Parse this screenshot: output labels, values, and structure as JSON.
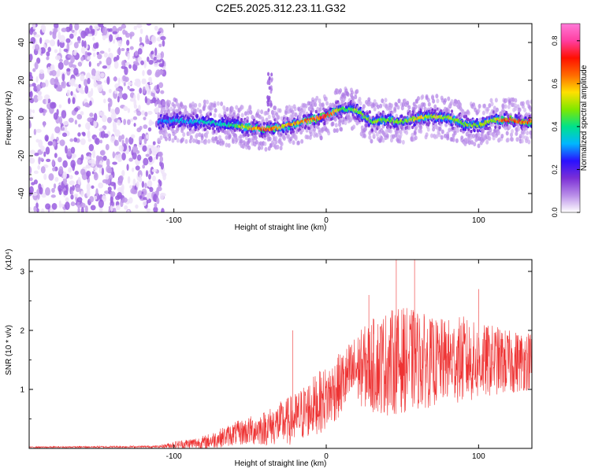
{
  "title": "C2E5.2025.312.23.11.G32",
  "chart_data": [
    {
      "type": "heatmap",
      "name": "spectrogram",
      "xlabel": "Height of straight line (km)",
      "ylabel": "Frequency (Hz)",
      "xlim": [
        -195,
        135
      ],
      "ylim": [
        -50,
        50
      ],
      "xticks": [
        -100,
        0,
        100
      ],
      "xtick_labels": [
        "-100",
        "0",
        "100"
      ],
      "yticks": [
        -40,
        -20,
        0,
        20,
        40
      ],
      "ytick_labels": [
        "-40",
        "-20",
        "0",
        "20",
        "40"
      ],
      "colorbar": {
        "label": "Normalized spectral amplitude",
        "range": [
          0.0,
          0.88
        ],
        "ticks": [
          0.0,
          0.2,
          0.4,
          0.6,
          0.8
        ],
        "tick_labels": [
          "0.0",
          "0.2",
          "0.4",
          "0.6",
          "0.8"
        ],
        "colors": [
          "#ffffff",
          "#b98de8",
          "#7b2fd6",
          "#2a10ff",
          "#00b7ff",
          "#00e28a",
          "#7fe800",
          "#ffe000",
          "#ff6a00",
          "#ff1000",
          "#ff3ea0",
          "#ff7ad8"
        ]
      },
      "noise_region": {
        "x": [
          -195,
          -110
        ],
        "y": [
          -50,
          50
        ],
        "level": 0.12
      },
      "center_line": {
        "x": [
          -110,
          -100,
          -90,
          -80,
          -70,
          -60,
          -50,
          -40,
          -30,
          -20,
          -10,
          0,
          10,
          20,
          30,
          40,
          50,
          60,
          70,
          80,
          90,
          100,
          110,
          120,
          130
        ],
        "y": [
          -2,
          -1,
          -2,
          -2,
          -3,
          -4,
          -5,
          -6,
          -5,
          -3,
          -1,
          1,
          5,
          4,
          -2,
          -1,
          -2,
          0,
          1,
          0,
          -3,
          -4,
          -1,
          -1,
          -2
        ],
        "peak_amplitude": [
          0.3,
          0.35,
          0.35,
          0.4,
          0.4,
          0.45,
          0.6,
          0.75,
          0.6,
          0.65,
          0.7,
          0.8,
          0.45,
          0.5,
          0.5,
          0.5,
          0.5,
          0.6,
          0.55,
          0.55,
          0.5,
          0.5,
          0.55,
          0.75,
          0.7
        ]
      }
    },
    {
      "type": "line",
      "name": "snr",
      "xlabel": "Height of straight line (km)",
      "ylabel": "SNR (10 * v/v)",
      "y_scale_label": "(x10⁴)",
      "xlim": [
        -195,
        135
      ],
      "ylim": [
        0,
        3.2
      ],
      "xticks": [
        -100,
        0,
        100
      ],
      "xtick_labels": [
        "-100",
        "0",
        "100"
      ],
      "yticks": [
        1,
        2,
        3
      ],
      "ytick_labels": [
        "1",
        "2",
        "3"
      ],
      "color": "#ee3333",
      "envelope": {
        "x": [
          -195,
          -110,
          -100,
          -80,
          -60,
          -40,
          -20,
          -10,
          0,
          10,
          20,
          30,
          40,
          50,
          60,
          70,
          80,
          90,
          100,
          110,
          120,
          135
        ],
        "mean": [
          0.02,
          0.03,
          0.06,
          0.1,
          0.25,
          0.35,
          0.5,
          0.7,
          0.85,
          1.1,
          1.35,
          1.4,
          1.45,
          1.5,
          1.5,
          1.45,
          1.5,
          1.5,
          1.45,
          1.5,
          1.45,
          1.5
        ],
        "amplitude": [
          0.01,
          0.02,
          0.06,
          0.12,
          0.2,
          0.3,
          0.45,
          0.5,
          0.55,
          0.55,
          0.6,
          0.8,
          0.9,
          0.9,
          0.85,
          0.75,
          0.7,
          0.75,
          0.65,
          0.6,
          0.55,
          0.5
        ]
      },
      "spikes": [
        {
          "x": -22,
          "y": 2.0
        },
        {
          "x": 46,
          "y": 3.2
        },
        {
          "x": 58,
          "y": 3.2
        },
        {
          "x": 28,
          "y": 2.6
        },
        {
          "x": 100,
          "y": 2.7
        }
      ]
    }
  ]
}
